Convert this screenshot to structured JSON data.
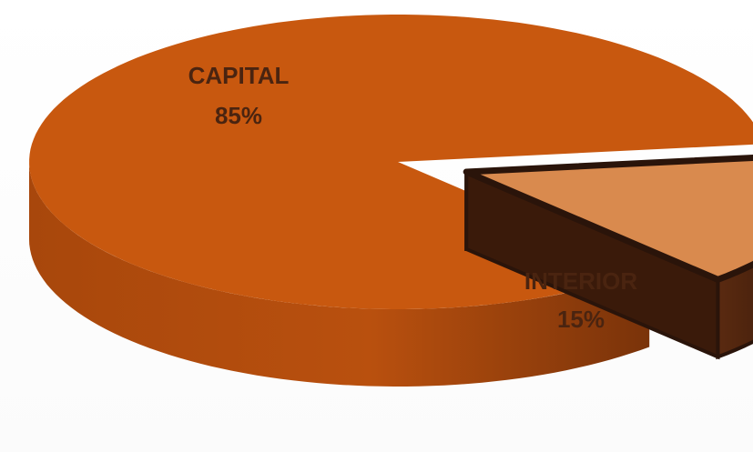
{
  "chart_data": {
    "type": "pie",
    "style": "3d-exploded",
    "title": "",
    "slices": [
      {
        "name": "CAPITAL",
        "value": 85,
        "value_label": "85%",
        "color": "#C8580F",
        "side_color": "#9A3F0A"
      },
      {
        "name": "INTERIOR",
        "value": 15,
        "value_label": "15%",
        "color": "#D98A4E",
        "side_color": "#4A220F"
      }
    ],
    "label_color": "#4A2410",
    "outline_color": "#2A140A"
  }
}
